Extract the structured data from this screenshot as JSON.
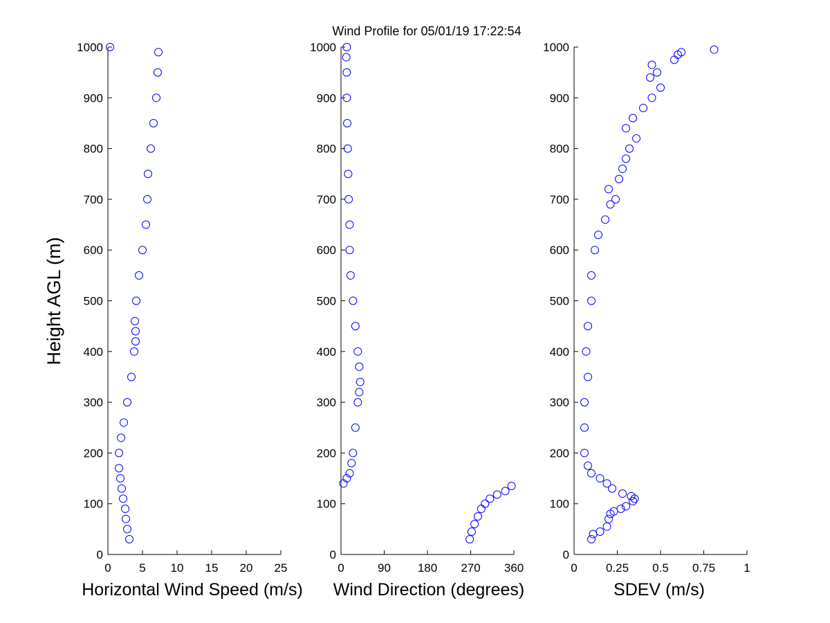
{
  "title": "Wind Profile for  05/01/19 17:22:54",
  "colors": {
    "marker": "#0000ff",
    "axis": "#000000",
    "background": "#ffffff"
  },
  "chart_data": [
    {
      "type": "scatter",
      "title": "Wind Profile for  05/01/19 17:22:54",
      "xlabel": "Horizontal Wind Speed (m/s)",
      "ylabel": "Height AGL (m)",
      "xlim": [
        0,
        25
      ],
      "ylim": [
        0,
        1000
      ],
      "xticks": [
        "0",
        "5",
        "10",
        "15",
        "20",
        "25"
      ],
      "yticks": [
        "0",
        "100",
        "200",
        "300",
        "400",
        "500",
        "600",
        "700",
        "800",
        "900",
        "1000"
      ],
      "grid": false,
      "marker": "open-circle",
      "x": [
        3.1,
        2.8,
        2.6,
        2.5,
        2.2,
        2.0,
        1.8,
        1.6,
        1.6,
        1.9,
        2.3,
        2.8,
        3.4,
        3.8,
        4.0,
        4.0,
        3.9,
        4.1,
        4.5,
        5.0,
        5.5,
        5.7,
        5.8,
        6.2,
        6.6,
        7.0,
        7.2,
        7.3,
        0.3
      ],
      "y": [
        30,
        50,
        70,
        90,
        110,
        130,
        150,
        170,
        200,
        230,
        260,
        300,
        350,
        400,
        420,
        440,
        460,
        500,
        550,
        600,
        650,
        700,
        750,
        800,
        850,
        900,
        950,
        990,
        1000
      ]
    },
    {
      "type": "scatter",
      "xlabel": "Wind Direction (degrees)",
      "ylabel": "",
      "xlim": [
        0,
        360
      ],
      "ylim": [
        0,
        1000
      ],
      "xticks": [
        "0",
        "90",
        "180",
        "270",
        "360"
      ],
      "yticks": [
        "0",
        "100",
        "200",
        "300",
        "400",
        "500",
        "600",
        "700",
        "800",
        "900",
        "1000"
      ],
      "grid": false,
      "marker": "open-circle",
      "x": [
        268,
        272,
        278,
        285,
        292,
        300,
        310,
        325,
        342,
        355,
        5,
        12,
        18,
        22,
        25,
        30,
        35,
        38,
        40,
        38,
        35,
        30,
        25,
        20,
        18,
        18,
        16,
        15,
        14,
        13,
        12,
        12,
        11,
        12
      ],
      "y": [
        30,
        45,
        60,
        75,
        90,
        100,
        110,
        118,
        125,
        135,
        140,
        150,
        160,
        180,
        200,
        250,
        300,
        320,
        340,
        370,
        400,
        450,
        500,
        550,
        600,
        650,
        700,
        750,
        800,
        850,
        900,
        950,
        980,
        1000
      ]
    },
    {
      "type": "scatter",
      "xlabel": "SDEV  (m/s)",
      "ylabel": "",
      "xlim": [
        0,
        1
      ],
      "ylim": [
        0,
        1000
      ],
      "xticks": [
        "0",
        "0.25",
        "0.5",
        "0.75",
        "1"
      ],
      "yticks": [
        "0",
        "100",
        "200",
        "300",
        "400",
        "500",
        "600",
        "700",
        "800",
        "900",
        "1000"
      ],
      "grid": false,
      "marker": "open-circle",
      "x": [
        0.1,
        0.11,
        0.15,
        0.19,
        0.2,
        0.21,
        0.23,
        0.27,
        0.3,
        0.34,
        0.35,
        0.33,
        0.28,
        0.22,
        0.19,
        0.15,
        0.1,
        0.08,
        0.06,
        0.06,
        0.06,
        0.08,
        0.07,
        0.08,
        0.1,
        0.1,
        0.12,
        0.14,
        0.18,
        0.21,
        0.24,
        0.2,
        0.26,
        0.28,
        0.3,
        0.32,
        0.36,
        0.3,
        0.34,
        0.4,
        0.45,
        0.5,
        0.44,
        0.48,
        0.45,
        0.58,
        0.6,
        0.62,
        0.81
      ],
      "y": [
        30,
        40,
        45,
        55,
        70,
        80,
        85,
        90,
        95,
        105,
        110,
        115,
        120,
        130,
        140,
        150,
        160,
        175,
        200,
        250,
        300,
        350,
        400,
        450,
        500,
        550,
        600,
        630,
        660,
        690,
        700,
        720,
        740,
        760,
        780,
        800,
        820,
        840,
        860,
        880,
        900,
        920,
        940,
        950,
        965,
        975,
        985,
        990,
        995
      ]
    }
  ]
}
